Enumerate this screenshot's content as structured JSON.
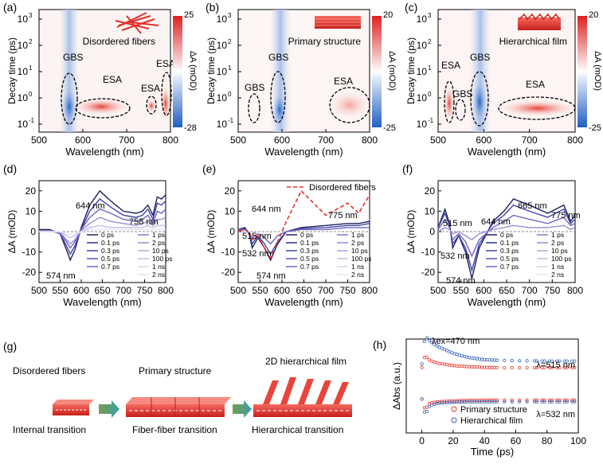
{
  "colors": {
    "red": "#e8312a",
    "blue": "#2f5fb3",
    "dark_navy": "#1f2a6b",
    "cbar_red": "#e02020",
    "cbar_blue": "#1f5fc4"
  },
  "maps": [
    {
      "id": "a",
      "label": "(a)",
      "title": "Disordered fibers",
      "cbar_max": "25",
      "cbar_min": "-28",
      "annotations": [
        {
          "text": "GBS"
        },
        {
          "text": "ESA"
        },
        {
          "text": "ESA"
        },
        {
          "text": "ESA"
        }
      ]
    },
    {
      "id": "b",
      "label": "(b)",
      "title": "Primary structure",
      "cbar_max": "20",
      "cbar_min": "-25",
      "annotations": [
        {
          "text": "GBS"
        },
        {
          "text": "GBS"
        },
        {
          "text": "ESA"
        }
      ]
    },
    {
      "id": "c",
      "label": "(c)",
      "title": "Hierarchical film",
      "cbar_max": "20",
      "cbar_min": "-25",
      "annotations": [
        {
          "text": "ESA"
        },
        {
          "text": "GBS"
        },
        {
          "text": "GBS"
        },
        {
          "text": "ESA"
        }
      ]
    }
  ],
  "map_axes": {
    "xlabel": "Wavelength (nm)",
    "ylabel": "Decay time (ps)",
    "xticks": [
      "500",
      "600",
      "700",
      "800"
    ],
    "yticks": [
      "10",
      "10",
      "10",
      "10",
      "10"
    ],
    "yexps": [
      "-1",
      "0",
      "1",
      "2",
      "3"
    ],
    "cbar_label": "ΔA (mOD)"
  },
  "spectra_axes": {
    "xlabel": "Wavelength (nm)",
    "ylabel": "ΔA (mOD)",
    "xticks": [
      "500",
      "550",
      "600",
      "650",
      "700",
      "750",
      "800"
    ],
    "yticks": [
      "20",
      "10",
      "0",
      "-10",
      "-20"
    ]
  },
  "spectra_legend": [
    "0 ps",
    "0.1 ps",
    "0.3 ps",
    "0.5 ps",
    "0.7 ps",
    "1 ps",
    "2 ps",
    "10 ps",
    "100 ps",
    "1 ns",
    "2 ns"
  ],
  "spectra": [
    {
      "id": "d",
      "label": "(d)",
      "annotations": [
        "644 nm",
        "758 nm",
        "574 nm"
      ],
      "dashed_legend": ""
    },
    {
      "id": "e",
      "label": "(e)",
      "annotations": [
        "644 nm",
        "775 nm",
        "515 nm",
        "532 nm",
        "574 nm"
      ],
      "dashed_legend": "Disordered fibers"
    },
    {
      "id": "f",
      "label": "(f)",
      "annotations": [
        "665 nm",
        "644 nm",
        "775 nm",
        "515 nm",
        "532 nm",
        "574 nm"
      ],
      "dashed_legend": ""
    }
  ],
  "panel_g": {
    "label": "(g)",
    "titles": [
      "Disordered fibers",
      "Primary structure",
      "2D hierarchical film"
    ],
    "captions": [
      "Internal transition",
      "Fiber-fiber transition",
      "Hierarchical transition"
    ]
  },
  "panel_h": {
    "label": "(h)",
    "xlabel": "Time (ps)",
    "ylabel": "ΔAbs (a.u.)",
    "xticks": [
      "0",
      "20",
      "40",
      "60",
      "80",
      "100"
    ],
    "excitation": "λex=470 nm",
    "probe_upper": "λ=515 nm",
    "probe_lower": "λ=532 nm",
    "legend": [
      "Primary structure",
      "Hierarchical film"
    ]
  },
  "chart_data": [
    {
      "type": "heatmap",
      "panel": "a",
      "title": "Disordered fibers",
      "xlabel": "Wavelength (nm)",
      "ylabel": "Decay time (ps)",
      "xlim": [
        500,
        800
      ],
      "ylim": [
        0.1,
        5000
      ],
      "yscale": "log",
      "zlim": [
        -28,
        25
      ],
      "zlabel": "ΔA (mOD)",
      "features": [
        {
          "label": "GBS",
          "center_nm": 575,
          "center_ps": 0.9
        },
        {
          "label": "ESA",
          "center_nm": 640,
          "center_ps": 0.8
        },
        {
          "label": "ESA",
          "center_nm": 757,
          "center_ps": 0.8
        },
        {
          "label": "ESA",
          "center_nm": 790,
          "center_ps": 1.2
        }
      ]
    },
    {
      "type": "heatmap",
      "panel": "b",
      "title": "Primary structure",
      "xlabel": "Wavelength (nm)",
      "ylabel": "Decay time (ps)",
      "xlim": [
        500,
        800
      ],
      "ylim": [
        0.1,
        5000
      ],
      "yscale": "log",
      "zlim": [
        -25,
        20
      ],
      "zlabel": "ΔA (mOD)",
      "features": [
        {
          "label": "GBS",
          "center_nm": 530,
          "center_ps": 0.6
        },
        {
          "label": "GBS",
          "center_nm": 577,
          "center_ps": 1.0
        },
        {
          "label": "ESA",
          "center_nm": 770,
          "center_ps": 0.9
        }
      ]
    },
    {
      "type": "heatmap",
      "panel": "c",
      "title": "Hierarchical film",
      "xlabel": "Wavelength (nm)",
      "ylabel": "Decay time (ps)",
      "xlim": [
        500,
        800
      ],
      "ylim": [
        0.1,
        5000
      ],
      "yscale": "log",
      "zlim": [
        -25,
        20
      ],
      "zlabel": "ΔA (mOD)",
      "features": [
        {
          "label": "ESA",
          "center_nm": 515,
          "center_ps": 1.0
        },
        {
          "label": "GBS",
          "center_nm": 532,
          "center_ps": 0.6
        },
        {
          "label": "GBS",
          "center_nm": 575,
          "center_ps": 1.2
        },
        {
          "label": "ESA",
          "center_nm": 710,
          "center_ps": 0.7
        }
      ]
    },
    {
      "type": "line",
      "panel": "d",
      "xlabel": "Wavelength (nm)",
      "ylabel": "ΔA (mOD)",
      "xlim": [
        500,
        800
      ],
      "ylim": [
        -25,
        25
      ],
      "x": [
        500,
        525,
        550,
        565,
        574,
        585,
        600,
        620,
        644,
        670,
        700,
        730,
        745,
        758,
        770,
        780,
        790,
        800
      ],
      "series": [
        {
          "name": "0.7 ps",
          "values": [
            1,
            1,
            -1,
            -9,
            -14,
            -9,
            2,
            13,
            20,
            15,
            10,
            9,
            10,
            13,
            8,
            17,
            16,
            18
          ]
        },
        {
          "name": "0.3 ps",
          "values": [
            0.5,
            0.5,
            -1,
            -7,
            -11,
            -7,
            1,
            10,
            16,
            12,
            8,
            7,
            8,
            11,
            6,
            14,
            13,
            15
          ]
        },
        {
          "name": "2 ps",
          "values": [
            0.5,
            0.5,
            -0.5,
            -5,
            -8,
            -5,
            1,
            7,
            11,
            9,
            6,
            5,
            6,
            8,
            4,
            10,
            9,
            11
          ]
        },
        {
          "name": "10 ps",
          "values": [
            0.3,
            0.3,
            -0.5,
            -4,
            -6,
            -4,
            0.5,
            4,
            7,
            5,
            4,
            3,
            4,
            5,
            3,
            6,
            6,
            7
          ]
        },
        {
          "name": "100 ps",
          "values": [
            0,
            0,
            -0.3,
            -2,
            -3,
            -2,
            0,
            2,
            3,
            2,
            2,
            2,
            2,
            3,
            2,
            3,
            3,
            3
          ]
        },
        {
          "name": "2 ns",
          "values": [
            0,
            0,
            0,
            -1,
            -1.5,
            -1,
            0,
            1,
            1,
            1,
            1,
            1,
            1,
            1,
            1,
            1,
            1,
            1
          ]
        }
      ]
    },
    {
      "type": "line",
      "panel": "e",
      "xlabel": "Wavelength (nm)",
      "ylabel": "ΔA (mOD)",
      "xlim": [
        500,
        800
      ],
      "ylim": [
        -25,
        25
      ],
      "x": [
        500,
        515,
        525,
        532,
        545,
        560,
        574,
        590,
        610,
        644,
        700,
        750,
        775,
        800
      ],
      "series": [
        {
          "name": "0.7 ps",
          "values": [
            1,
            2,
            -1,
            -8,
            -3,
            -8,
            -14,
            -6,
            0,
            2,
            3,
            4,
            4,
            5
          ]
        },
        {
          "name": "0.3 ps",
          "values": [
            1,
            1.5,
            -1,
            -6,
            -2,
            -6,
            -11,
            -5,
            0,
            1.5,
            2,
            3,
            3,
            4
          ]
        },
        {
          "name": "10 ps",
          "values": [
            0.5,
            1,
            -0.5,
            -3,
            -1,
            -3,
            -6,
            -2,
            0,
            1,
            1,
            2,
            2,
            2
          ]
        },
        {
          "name": "Disordered fibers",
          "values": [
            0,
            1,
            0,
            -4,
            -2,
            -8,
            -13,
            -5,
            5,
            20,
            8,
            14,
            9,
            18
          ]
        }
      ]
    },
    {
      "type": "line",
      "panel": "f",
      "xlabel": "Wavelength (nm)",
      "ylabel": "ΔA (mOD)",
      "xlim": [
        500,
        800
      ],
      "ylim": [
        -25,
        25
      ],
      "x": [
        500,
        515,
        525,
        532,
        545,
        560,
        574,
        590,
        620,
        644,
        665,
        700,
        740,
        775,
        790,
        800
      ],
      "series": [
        {
          "name": "0.7 ps",
          "values": [
            2,
            11,
            4,
            -8,
            -2,
            -10,
            -23,
            -8,
            5,
            10,
            16,
            13,
            9,
            13,
            5,
            8
          ]
        },
        {
          "name": "0.3 ps",
          "values": [
            2,
            9,
            3,
            -6,
            -2,
            -8,
            -19,
            -6,
            4,
            8,
            13,
            10,
            7,
            11,
            4,
            6
          ]
        },
        {
          "name": "10 ps",
          "values": [
            1,
            6,
            2,
            -4,
            -1,
            -5,
            -12,
            -4,
            2,
            5,
            8,
            6,
            4,
            7,
            3,
            4
          ]
        },
        {
          "name": "2 ns",
          "values": [
            0,
            2,
            1,
            -1,
            0,
            -2,
            -4,
            -1,
            1,
            2,
            3,
            2,
            2,
            3,
            1,
            2
          ]
        }
      ]
    },
    {
      "type": "scatter",
      "panel": "h",
      "xlabel": "Time (ps)",
      "ylabel": "ΔAbs (a.u.)",
      "xlim": [
        -10,
        100
      ],
      "series": [
        {
          "name": "Hierarchical film λ=515 nm",
          "x": [
            0,
            2,
            5,
            10,
            20,
            30,
            40,
            50,
            60,
            80,
            100
          ],
          "values": [
            0.2,
            1.0,
            0.85,
            0.7,
            0.5,
            0.38,
            0.32,
            0.3,
            0.29,
            0.28,
            0.28
          ]
        },
        {
          "name": "Primary structure λ=515 nm",
          "x": [
            0,
            2,
            5,
            10,
            20,
            30,
            40,
            50,
            60,
            80,
            100
          ],
          "values": [
            0.1,
            0.45,
            0.3,
            0.22,
            0.15,
            0.12,
            0.1,
            0.09,
            0.09,
            0.09,
            0.09
          ]
        },
        {
          "name": "Primary structure λ=532 nm",
          "x": [
            0,
            2,
            5,
            10,
            20,
            30,
            40,
            50,
            60,
            80,
            100
          ],
          "values": [
            -0.1,
            -0.5,
            -0.25,
            -0.2,
            -0.17,
            -0.15,
            -0.14,
            -0.14,
            -0.14,
            -0.14,
            -0.14
          ]
        },
        {
          "name": "Hierarchical film λ=532 nm",
          "x": [
            0,
            2,
            5,
            10,
            20,
            30,
            40,
            50,
            60,
            80,
            100
          ],
          "values": [
            -0.1,
            -0.7,
            -0.35,
            -0.25,
            -0.22,
            -0.2,
            -0.2,
            -0.2,
            -0.2,
            -0.2,
            -0.2
          ]
        }
      ]
    }
  ]
}
